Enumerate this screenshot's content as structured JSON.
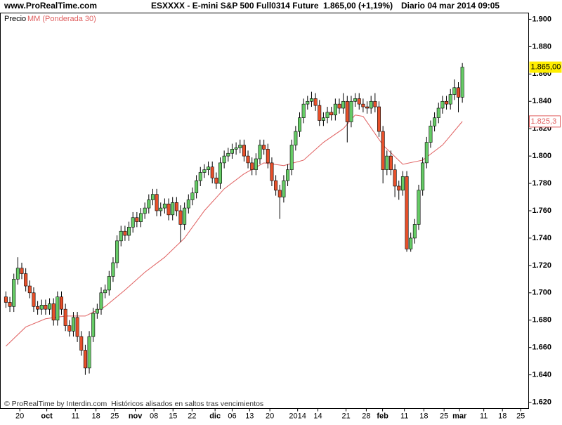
{
  "header": {
    "site": "www.ProRealTime.com",
    "instrument": "ESXXXX - E-mini S&P 500 Full0314 Future",
    "quote": "1.865,00 (+1,19%)",
    "period": "Diario 04 mar 2014 09:05"
  },
  "chart_data": {
    "type": "candlestick",
    "price_name": "Precio",
    "up_color": "#66cc66",
    "down_color": "#e8502a",
    "open": [
      1697,
      1693,
      1690,
      1710,
      1718,
      1714,
      1705,
      1700,
      1690,
      1688,
      1691,
      1688,
      1692,
      1680,
      1697,
      1688,
      1676,
      1672,
      1682,
      1668,
      1658,
      1645,
      1668,
      1685,
      1688,
      1700,
      1702,
      1712,
      1722,
      1738,
      1745,
      1742,
      1748,
      1755,
      1752,
      1758,
      1762,
      1768,
      1772,
      1760,
      1762,
      1765,
      1757,
      1766,
      1760,
      1750,
      1762,
      1768,
      1773,
      1782,
      1788,
      1790,
      1792,
      1784,
      1780,
      1795,
      1800,
      1802,
      1805,
      1806,
      1808,
      1800,
      1795,
      1790,
      1798,
      1808,
      1805,
      1795,
      1782,
      1775,
      1770,
      1782,
      1790,
      1808,
      1818,
      1828,
      1838,
      1840,
      1842,
      1837,
      1826,
      1828,
      1832,
      1830,
      1838,
      1835,
      1840,
      1825,
      1840,
      1842,
      1838,
      1836,
      1835,
      1840,
      1836,
      1818,
      1790,
      1800,
      1790,
      1778,
      1775,
      1785,
      1732,
      1740,
      1750,
      1775,
      1795,
      1810,
      1822,
      1828,
      1835,
      1840,
      1838,
      1845,
      1850,
      1843
    ],
    "high": [
      1701,
      1697,
      1714,
      1726,
      1722,
      1718,
      1709,
      1704,
      1694,
      1695,
      1695,
      1696,
      1696,
      1701,
      1701,
      1692,
      1680,
      1686,
      1686,
      1672,
      1662,
      1672,
      1689,
      1692,
      1704,
      1706,
      1716,
      1726,
      1742,
      1749,
      1749,
      1752,
      1759,
      1759,
      1762,
      1766,
      1772,
      1776,
      1776,
      1766,
      1769,
      1769,
      1770,
      1770,
      1764,
      1766,
      1772,
      1777,
      1786,
      1792,
      1794,
      1796,
      1796,
      1788,
      1799,
      1804,
      1806,
      1809,
      1810,
      1812,
      1812,
      1804,
      1799,
      1802,
      1812,
      1812,
      1809,
      1799,
      1786,
      1779,
      1786,
      1794,
      1812,
      1822,
      1832,
      1842,
      1844,
      1847,
      1846,
      1841,
      1832,
      1836,
      1836,
      1842,
      1842,
      1846,
      1844,
      1844,
      1846,
      1846,
      1842,
      1840,
      1844,
      1846,
      1840,
      1822,
      1804,
      1804,
      1794,
      1782,
      1789,
      1789,
      1744,
      1754,
      1779,
      1799,
      1814,
      1826,
      1832,
      1839,
      1844,
      1844,
      1849,
      1856,
      1854,
      1868
    ],
    "low": [
      1689,
      1686,
      1686,
      1706,
      1710,
      1701,
      1696,
      1686,
      1684,
      1684,
      1684,
      1684,
      1676,
      1676,
      1684,
      1672,
      1668,
      1668,
      1664,
      1654,
      1640,
      1641,
      1664,
      1681,
      1684,
      1696,
      1698,
      1708,
      1718,
      1734,
      1738,
      1738,
      1744,
      1748,
      1748,
      1754,
      1758,
      1764,
      1756,
      1756,
      1758,
      1753,
      1753,
      1756,
      1737,
      1746,
      1758,
      1764,
      1769,
      1778,
      1784,
      1786,
      1780,
      1776,
      1776,
      1791,
      1796,
      1798,
      1801,
      1802,
      1796,
      1791,
      1786,
      1786,
      1794,
      1801,
      1791,
      1778,
      1771,
      1754,
      1766,
      1778,
      1786,
      1804,
      1814,
      1824,
      1834,
      1836,
      1833,
      1822,
      1822,
      1824,
      1826,
      1826,
      1831,
      1831,
      1810,
      1821,
      1836,
      1834,
      1832,
      1831,
      1831,
      1832,
      1814,
      1780,
      1786,
      1786,
      1770,
      1768,
      1771,
      1730,
      1730,
      1736,
      1746,
      1771,
      1791,
      1806,
      1818,
      1824,
      1831,
      1834,
      1834,
      1841,
      1832,
      1839
    ],
    "close": [
      1693,
      1690,
      1710,
      1718,
      1714,
      1705,
      1700,
      1690,
      1688,
      1691,
      1688,
      1692,
      1680,
      1697,
      1688,
      1676,
      1672,
      1682,
      1668,
      1658,
      1645,
      1668,
      1685,
      1688,
      1700,
      1702,
      1712,
      1722,
      1738,
      1745,
      1742,
      1748,
      1755,
      1752,
      1758,
      1762,
      1768,
      1772,
      1760,
      1762,
      1765,
      1757,
      1766,
      1760,
      1750,
      1762,
      1768,
      1773,
      1782,
      1788,
      1790,
      1792,
      1784,
      1780,
      1795,
      1800,
      1802,
      1805,
      1806,
      1808,
      1800,
      1795,
      1790,
      1798,
      1808,
      1805,
      1795,
      1782,
      1775,
      1770,
      1782,
      1790,
      1808,
      1818,
      1828,
      1838,
      1840,
      1842,
      1837,
      1826,
      1828,
      1832,
      1830,
      1838,
      1835,
      1840,
      1825,
      1840,
      1842,
      1838,
      1836,
      1835,
      1840,
      1836,
      1818,
      1790,
      1800,
      1790,
      1778,
      1775,
      1785,
      1732,
      1740,
      1750,
      1775,
      1795,
      1810,
      1822,
      1828,
      1835,
      1840,
      1838,
      1845,
      1850,
      1843,
      1865
    ],
    "ma": {
      "name": "MM (Ponderada 30)",
      "color": "#e06060",
      "x": [
        0,
        5,
        10,
        15,
        20,
        25,
        30,
        35,
        40,
        45,
        50,
        55,
        60,
        65,
        70,
        75,
        80,
        85,
        88,
        90,
        95,
        100,
        105,
        110,
        115
      ],
      "values": [
        1661,
        1675,
        1681,
        1683,
        1683,
        1690,
        1702,
        1715,
        1726,
        1740,
        1760,
        1776,
        1787,
        1795,
        1793,
        1797,
        1810,
        1820,
        1830,
        1829,
        1808,
        1794,
        1797,
        1808,
        1825.3
      ]
    },
    "last_price": {
      "value": 1865,
      "label": "1.865,00"
    },
    "ma_last": {
      "value": 1825.3,
      "label": "1.825,3"
    },
    "xlim": [
      -1.4,
      131.7
    ],
    "xticks": [
      {
        "value": 3.5,
        "label": "20"
      },
      {
        "value": 10.3,
        "label": "oct"
      },
      {
        "value": 17.5,
        "label": "11"
      },
      {
        "value": 22.7,
        "label": "18"
      },
      {
        "value": 27.4,
        "label": "25"
      },
      {
        "value": 32.6,
        "label": "nov"
      },
      {
        "value": 37.3,
        "label": "08"
      },
      {
        "value": 42.1,
        "label": "15"
      },
      {
        "value": 46.9,
        "label": "22"
      },
      {
        "value": 52.7,
        "label": "dic"
      },
      {
        "value": 57,
        "label": "06"
      },
      {
        "value": 61.4,
        "label": "13"
      },
      {
        "value": 66.5,
        "label": "20"
      },
      {
        "value": 73.5,
        "label": "2014"
      },
      {
        "value": 78.6,
        "label": "14"
      },
      {
        "value": 85.7,
        "label": "21"
      },
      {
        "value": 90.8,
        "label": "28"
      },
      {
        "value": 94.9,
        "label": "feb"
      },
      {
        "value": 100.4,
        "label": "11"
      },
      {
        "value": 105.3,
        "label": "18"
      },
      {
        "value": 110.4,
        "label": "25"
      },
      {
        "value": 114.3,
        "label": "mar"
      },
      {
        "value": 120.4,
        "label": "11"
      },
      {
        "value": 125.1,
        "label": "18"
      },
      {
        "value": 129.7,
        "label": "25"
      }
    ],
    "ylim": [
      1615.4,
      1904.6
    ],
    "yticks": [
      {
        "value": 1620,
        "label": "1.620"
      },
      {
        "value": 1640,
        "label": "1.640"
      },
      {
        "value": 1660,
        "label": "1.660"
      },
      {
        "value": 1680,
        "label": "1.680"
      },
      {
        "value": 1700,
        "label": "1.700"
      },
      {
        "value": 1720,
        "label": "1.720"
      },
      {
        "value": 1740,
        "label": "1.740"
      },
      {
        "value": 1760,
        "label": "1.760"
      },
      {
        "value": 1780,
        "label": "1.780"
      },
      {
        "value": 1800,
        "label": "1.800"
      },
      {
        "value": 1820,
        "label": "1.820"
      },
      {
        "value": 1840,
        "label": "1.840"
      },
      {
        "value": 1860,
        "label": "1.860"
      },
      {
        "value": 1880,
        "label": "1.880"
      },
      {
        "value": 1900,
        "label": "1.900"
      }
    ],
    "footer": "© ProRealTime by Interdin.com  Históricos alisados en saltos tras vencimientos"
  }
}
